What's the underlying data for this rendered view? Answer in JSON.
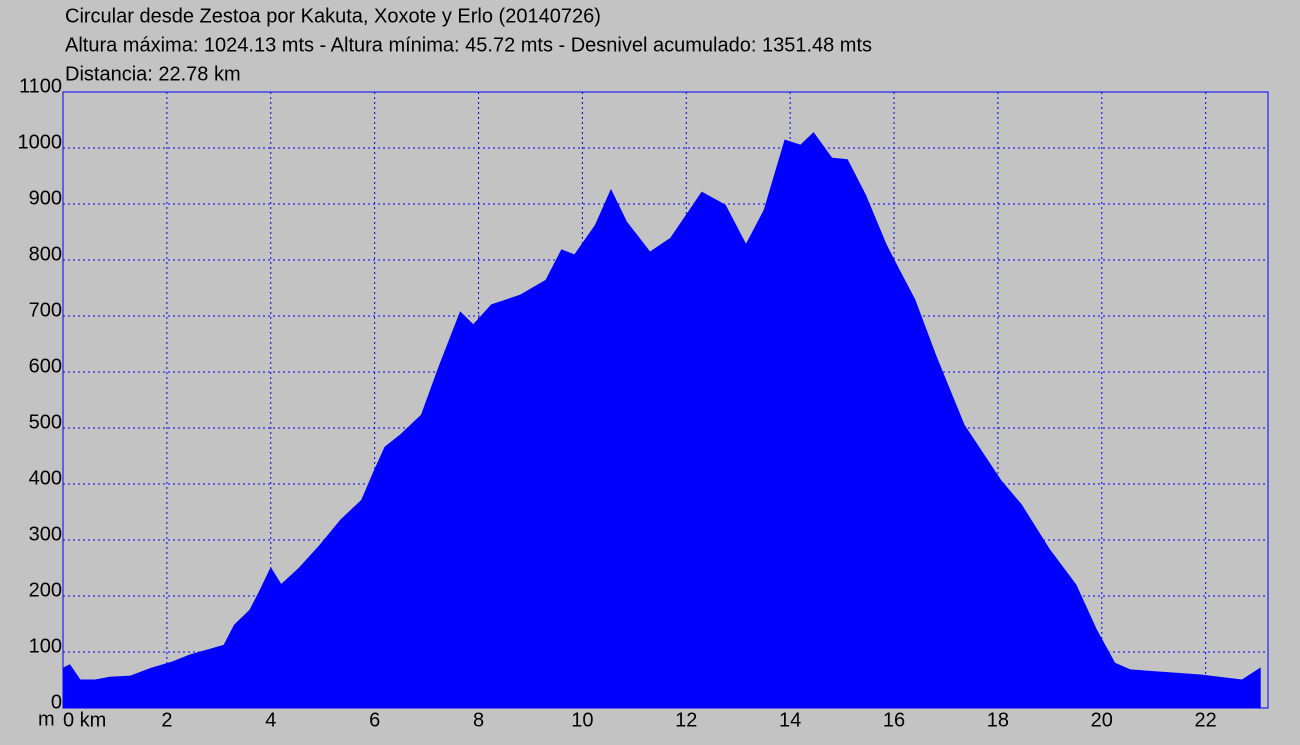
{
  "chart_data": {
    "type": "area",
    "title": "Circular desde Zestoa por Kakuta, Xoxote y Erlo (20140726)",
    "subtitle": "Altura máxima: 1024.13 mts - Altura mínima: 45.72 mts - Desnivel acumulado: 1351.48 mts",
    "note": "Distancia: 22.78 km",
    "ylabel": "m",
    "color": "#0000ff",
    "grid": true,
    "xlim": [
      0,
      23.2
    ],
    "ylim": [
      0,
      1100
    ],
    "xticks": [
      {
        "value": 0,
        "label": "0 km"
      },
      2,
      4,
      6,
      8,
      10,
      12,
      14,
      16,
      18,
      20,
      22
    ],
    "yticks": [
      0,
      100,
      200,
      300,
      400,
      500,
      600,
      700,
      800,
      900,
      1000,
      1100
    ],
    "x": [
      0,
      0.13,
      0.33,
      0.62,
      0.9,
      1.3,
      1.7,
      2.1,
      2.45,
      2.8,
      3.1,
      3.3,
      3.6,
      3.8,
      4.0,
      4.2,
      4.55,
      4.95,
      5.35,
      5.75,
      6.0,
      6.2,
      6.5,
      6.9,
      7.25,
      7.65,
      7.9,
      8.25,
      8.8,
      9.3,
      9.6,
      9.85,
      10.25,
      10.55,
      10.85,
      11.3,
      11.7,
      12.3,
      12.75,
      13.15,
      13.5,
      13.9,
      14.2,
      14.45,
      14.8,
      15.1,
      15.45,
      15.85,
      16.1,
      16.4,
      16.8,
      17.35,
      18.05,
      18.45,
      19.0,
      19.5,
      19.9,
      20.25,
      20.55,
      21.9,
      22.7,
      23.05
    ],
    "values": [
      71,
      77,
      50,
      50,
      55,
      57,
      71,
      82,
      95,
      104,
      112,
      148,
      175,
      211,
      250,
      220,
      250,
      291,
      336,
      371,
      425,
      466,
      488,
      523,
      612,
      707,
      684,
      720,
      737,
      764,
      818,
      809,
      862,
      925,
      868,
      814,
      839,
      921,
      898,
      827,
      889,
      1014,
      1005,
      1027,
      982,
      979,
      916,
      827,
      782,
      729,
      630,
      505,
      407,
      363,
      282,
      220,
      139,
      80,
      68,
      59,
      50,
      71
    ]
  }
}
